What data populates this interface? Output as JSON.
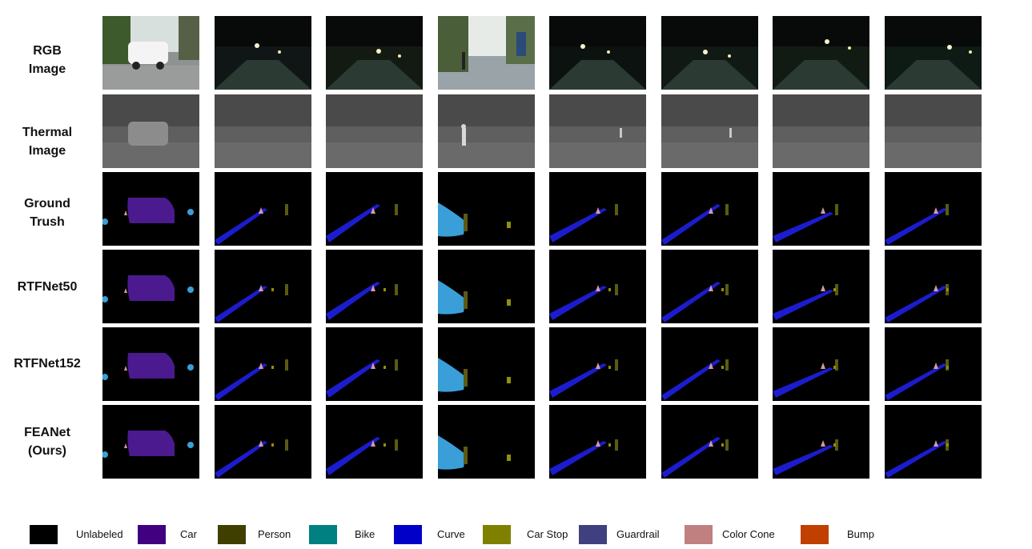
{
  "rows": [
    {
      "lines": [
        "RGB",
        "Image"
      ]
    },
    {
      "lines": [
        "Thermal",
        "Image"
      ]
    },
    {
      "lines": [
        "Ground",
        "Trush"
      ]
    },
    {
      "lines": [
        "RTFNet50"
      ]
    },
    {
      "lines": [
        "RTFNet152"
      ]
    },
    {
      "lines": [
        "FEANet",
        "(Ours)"
      ]
    }
  ],
  "legend": [
    {
      "label": "Unlabeled",
      "color": "#000000"
    },
    {
      "label": "Car",
      "color": "#40007f"
    },
    {
      "label": "Person",
      "color": "#3f4000"
    },
    {
      "label": "Bike",
      "color": "#008080"
    },
    {
      "label": "Curve",
      "color": "#0000c8"
    },
    {
      "label": "Car Stop",
      "color": "#808000"
    },
    {
      "label": "Guardrail",
      "color": "#404080"
    },
    {
      "label": "Color Cone",
      "color": "#c08080"
    },
    {
      "label": "Bump",
      "color": "#c04000"
    }
  ]
}
